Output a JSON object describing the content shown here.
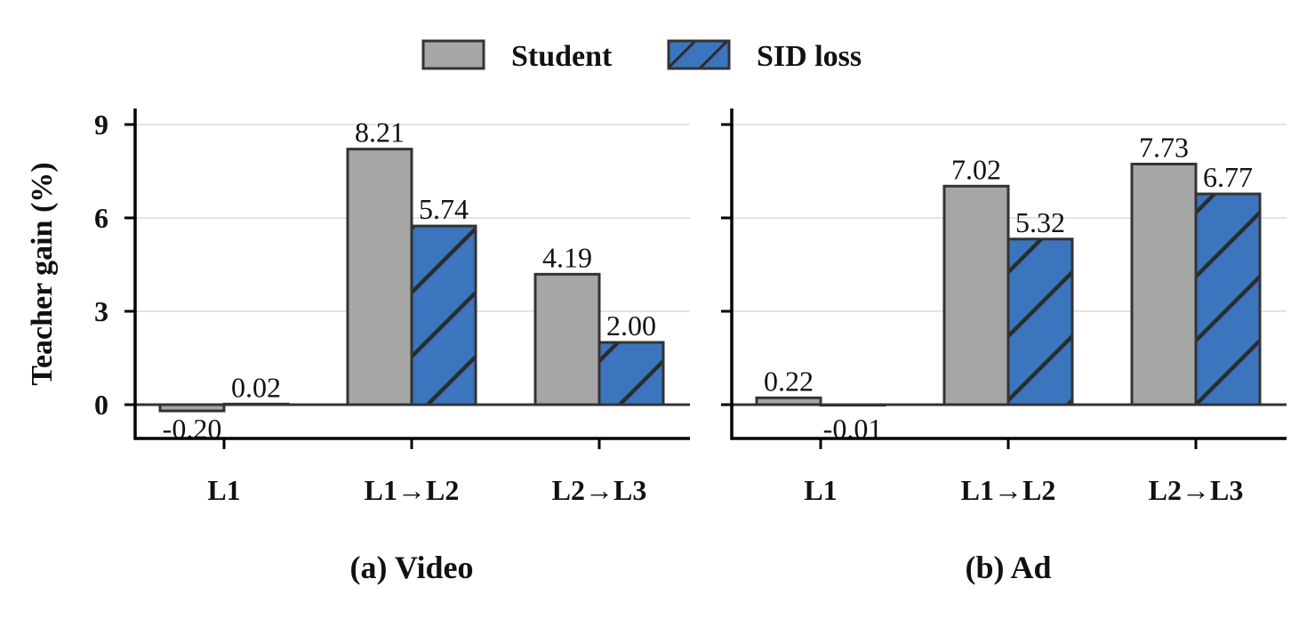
{
  "legend": {
    "placement": "top-center",
    "items": [
      {
        "label": "Student",
        "color": "#a6a6a6",
        "hatch": false
      },
      {
        "label": "SID loss",
        "color": "#3a75bd",
        "hatch": true
      }
    ]
  },
  "y_axis": {
    "label": "Teacher gain (%)",
    "ticks": [
      "0",
      "3",
      "6",
      "9"
    ]
  },
  "chart_data": [
    {
      "type": "bar",
      "panel_title": "(a) Video",
      "categories": [
        "L1",
        "L1→L2",
        "L2→L3"
      ],
      "series": [
        {
          "name": "Student",
          "values": [
            -0.2,
            8.21,
            4.19
          ]
        },
        {
          "name": "SID loss",
          "values": [
            0.02,
            5.74,
            2.0
          ]
        }
      ],
      "value_labels": [
        [
          "-0.20",
          "8.21",
          "4.19"
        ],
        [
          "0.02",
          "5.74",
          "2.00"
        ]
      ],
      "ylabel": "Teacher gain (%)",
      "ylim": [
        -1.1,
        9.5
      ],
      "yticks": [
        0,
        3,
        6,
        9
      ],
      "grid": "horizontal"
    },
    {
      "type": "bar",
      "panel_title": "(b) Ad",
      "categories": [
        "L1",
        "L1→L2",
        "L2→L3"
      ],
      "series": [
        {
          "name": "Student",
          "values": [
            0.22,
            7.02,
            7.73
          ]
        },
        {
          "name": "SID loss",
          "values": [
            -0.01,
            5.32,
            6.77
          ]
        }
      ],
      "value_labels": [
        [
          "0.22",
          "7.02",
          "7.73"
        ],
        [
          "-0.01",
          "5.32",
          "6.77"
        ]
      ],
      "ylabel": "",
      "ylim": [
        -1.1,
        9.5
      ],
      "yticks": [
        0,
        3,
        6,
        9
      ],
      "grid": "horizontal"
    }
  ]
}
